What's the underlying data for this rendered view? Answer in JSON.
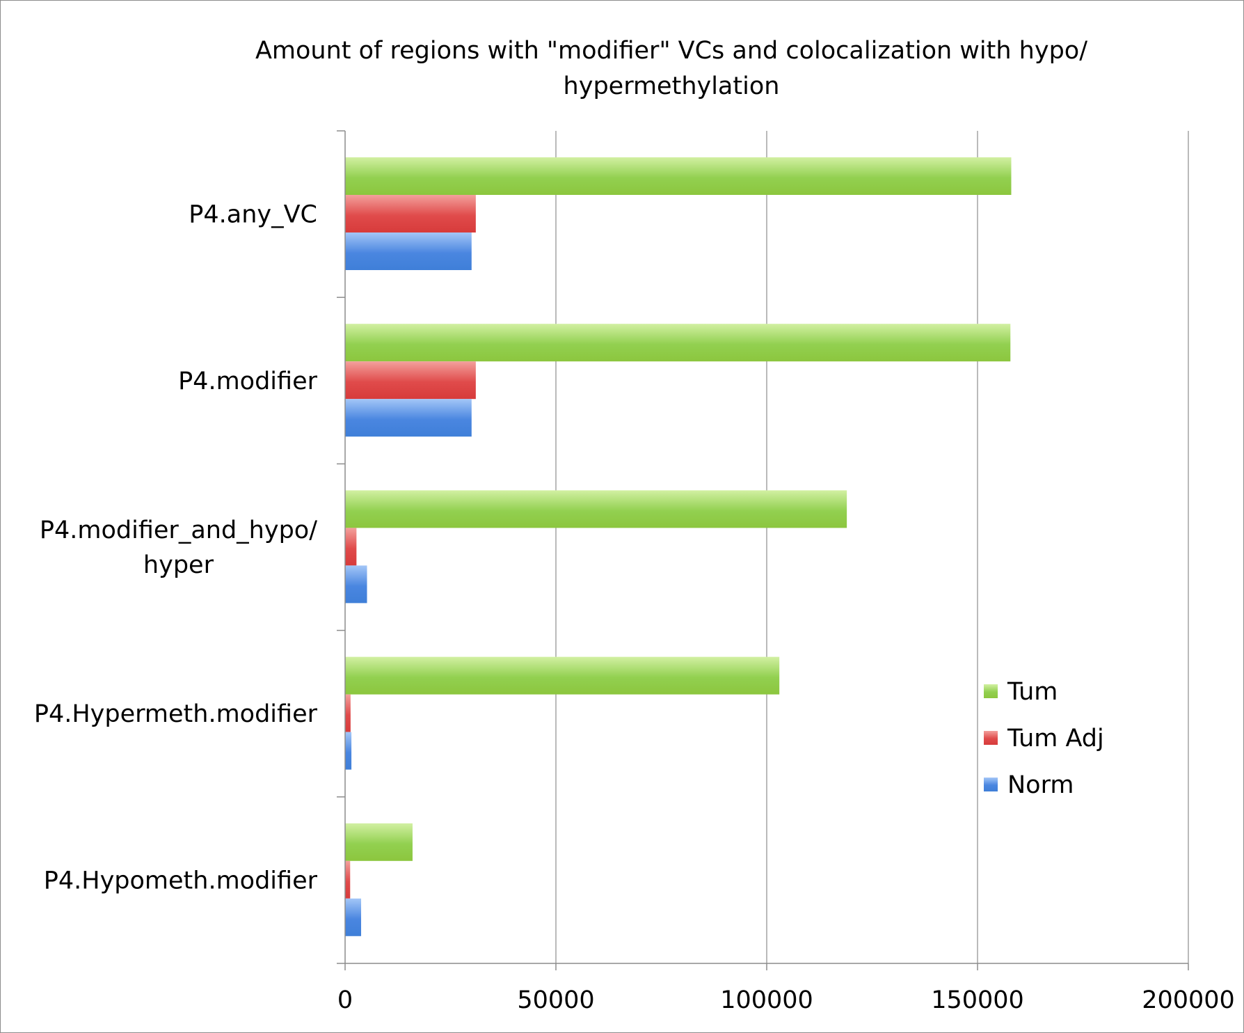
{
  "chart_data": {
    "type": "bar",
    "orientation": "horizontal",
    "title_lines": [
      "Amount of regions with \"modifier\" VCs and colocalization with hypo/",
      "hypermethylation"
    ],
    "categories": [
      [
        "P4.any_VC"
      ],
      [
        "P4.modifier"
      ],
      [
        "P4.modifier_and_hypo/",
        "hyper"
      ],
      [
        "P4.Hypermeth.modifier"
      ],
      [
        "P4.Hypometh.modifier"
      ]
    ],
    "series": [
      {
        "name": "Tum",
        "color": "#92d050",
        "color_light": "#d2f0a2",
        "color_dark": "#8cc63e",
        "values": [
          158000,
          157800,
          119000,
          103000,
          16000
        ]
      },
      {
        "name": "Tum Adj",
        "color": "#e04b4b",
        "color_light": "#f3a09c",
        "color_dark": "#d73b3b",
        "values": [
          31000,
          31000,
          2700,
          1300,
          1200
        ]
      },
      {
        "name": "Norm",
        "color": "#4a86e0",
        "color_light": "#a3c6f7",
        "color_dark": "#3f7fd8",
        "values": [
          30000,
          30000,
          5200,
          1500,
          3800
        ]
      }
    ],
    "x_ticks": [
      "0",
      "50000",
      "100000",
      "150000",
      "200000"
    ],
    "xlim": [
      0,
      200000
    ],
    "grid": true,
    "legend_position": "right"
  }
}
